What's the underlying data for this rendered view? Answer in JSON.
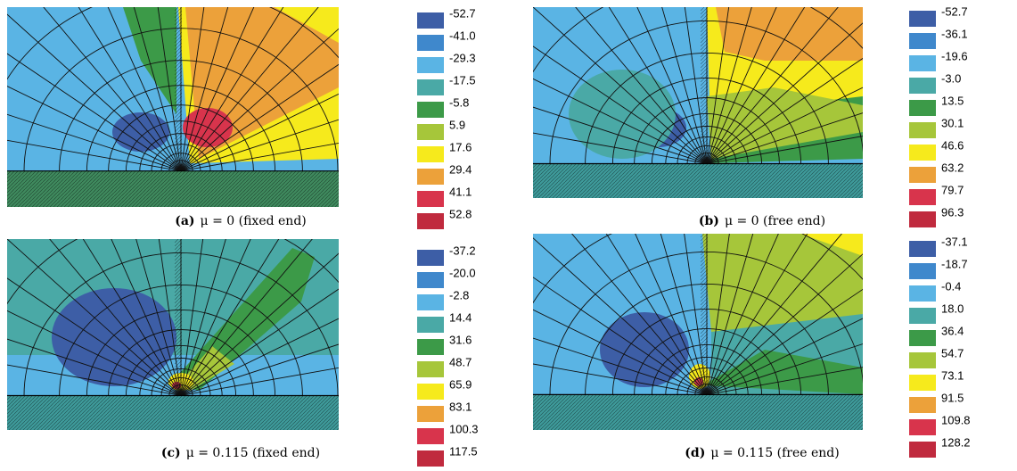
{
  "panels": [
    {
      "label": "(a)",
      "caption": "μ = 0 (fixed end)",
      "legend": [
        "-52.7",
        "-41.0",
        "-29.3",
        "-17.5",
        "-5.8",
        "5.9",
        "17.6",
        "29.4",
        "41.1",
        "52.8"
      ]
    },
    {
      "label": "(b)",
      "caption": "μ = 0 (free end)",
      "legend": [
        "-52.7",
        "-36.1",
        "-19.6",
        "-3.0",
        "13.5",
        "30.1",
        "46.6",
        "63.2",
        "79.7",
        "96.3"
      ]
    },
    {
      "label": "(c)",
      "caption": "μ = 0.115 (fixed end)",
      "legend": [
        "-37.2",
        "-20.0",
        "-2.8",
        "14.4",
        "31.6",
        "48.7",
        "65.9",
        "83.1",
        "100.3",
        "117.5"
      ]
    },
    {
      "label": "(d)",
      "caption": "μ = 0.115 (free end)",
      "legend": [
        "-37.1",
        "-18.7",
        "-0.4",
        "18.0",
        "36.4",
        "54.7",
        "73.1",
        "91.5",
        "109.8",
        "128.2"
      ]
    }
  ]
}
